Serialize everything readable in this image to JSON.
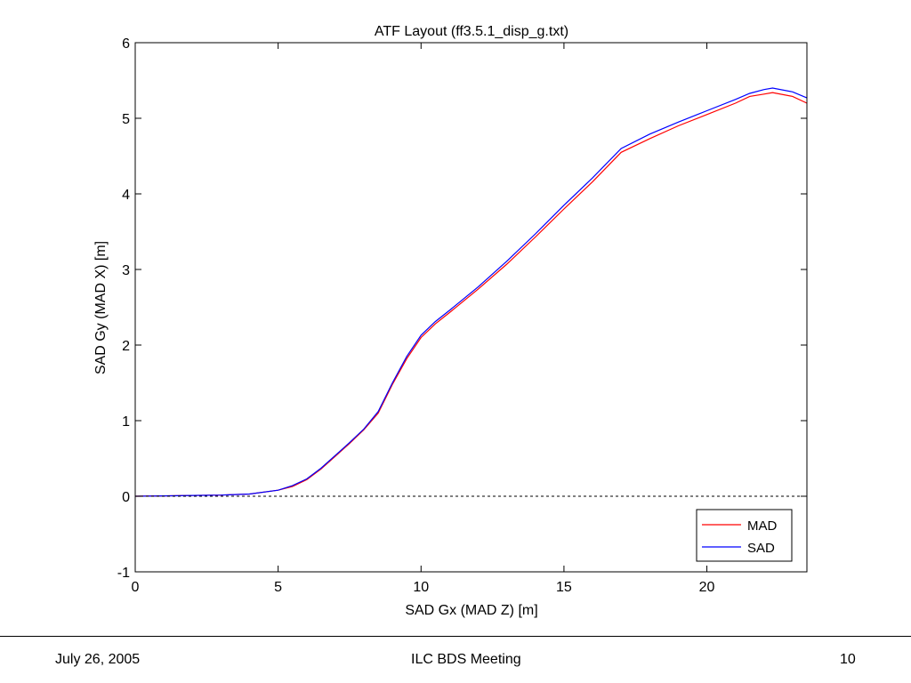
{
  "slide": {
    "footer": {
      "date": "July 26, 2005",
      "meeting": "ILC BDS Meeting",
      "page_number": "10"
    }
  },
  "chart_data": {
    "type": "line",
    "title": "ATF Layout (ff3.5.1_disp_g.txt)",
    "xlabel": "SAD Gx (MAD Z) [m]",
    "ylabel": "SAD Gy (MAD X) [m]",
    "xlim": [
      0,
      23.5
    ],
    "ylim": [
      -1,
      6
    ],
    "xticks": [
      0,
      5,
      10,
      15,
      20
    ],
    "yticks": [
      -1,
      0,
      1,
      2,
      3,
      4,
      5,
      6
    ],
    "reference_line": {
      "y": 0,
      "style": "dashed",
      "color": "#000000"
    },
    "legend_placement": "bottom-right",
    "grid": false,
    "series": [
      {
        "name": "MAD",
        "color": "#ff0000",
        "x": [
          0,
          1,
          2,
          3,
          4,
          5,
          5.5,
          6,
          6.5,
          7,
          7.5,
          8,
          8.5,
          9,
          9.5,
          10,
          10.5,
          11,
          12,
          13,
          14,
          15,
          16,
          17,
          18,
          19,
          20,
          21,
          21.5,
          22,
          22.3,
          23,
          23.5
        ],
        "y": [
          0,
          0.005,
          0.01,
          0.015,
          0.03,
          0.08,
          0.13,
          0.22,
          0.36,
          0.53,
          0.7,
          0.88,
          1.1,
          1.48,
          1.82,
          2.1,
          2.28,
          2.43,
          2.74,
          3.07,
          3.43,
          3.8,
          4.16,
          4.55,
          4.73,
          4.9,
          5.05,
          5.2,
          5.29,
          5.32,
          5.34,
          5.29,
          5.2
        ]
      },
      {
        "name": "SAD",
        "color": "#0000ff",
        "x": [
          0,
          1,
          2,
          3,
          4,
          5,
          5.5,
          6,
          6.5,
          7,
          7.5,
          8,
          8.5,
          9,
          9.5,
          10,
          10.5,
          11,
          12,
          13,
          14,
          15,
          16,
          17,
          18,
          19,
          20,
          21,
          21.5,
          22,
          22.3,
          23,
          23.5
        ],
        "y": [
          0,
          0.005,
          0.01,
          0.015,
          0.03,
          0.08,
          0.14,
          0.23,
          0.37,
          0.54,
          0.71,
          0.89,
          1.12,
          1.5,
          1.85,
          2.13,
          2.31,
          2.46,
          2.77,
          3.11,
          3.47,
          3.85,
          4.21,
          4.6,
          4.79,
          4.95,
          5.1,
          5.25,
          5.33,
          5.38,
          5.4,
          5.35,
          5.27
        ]
      }
    ]
  }
}
